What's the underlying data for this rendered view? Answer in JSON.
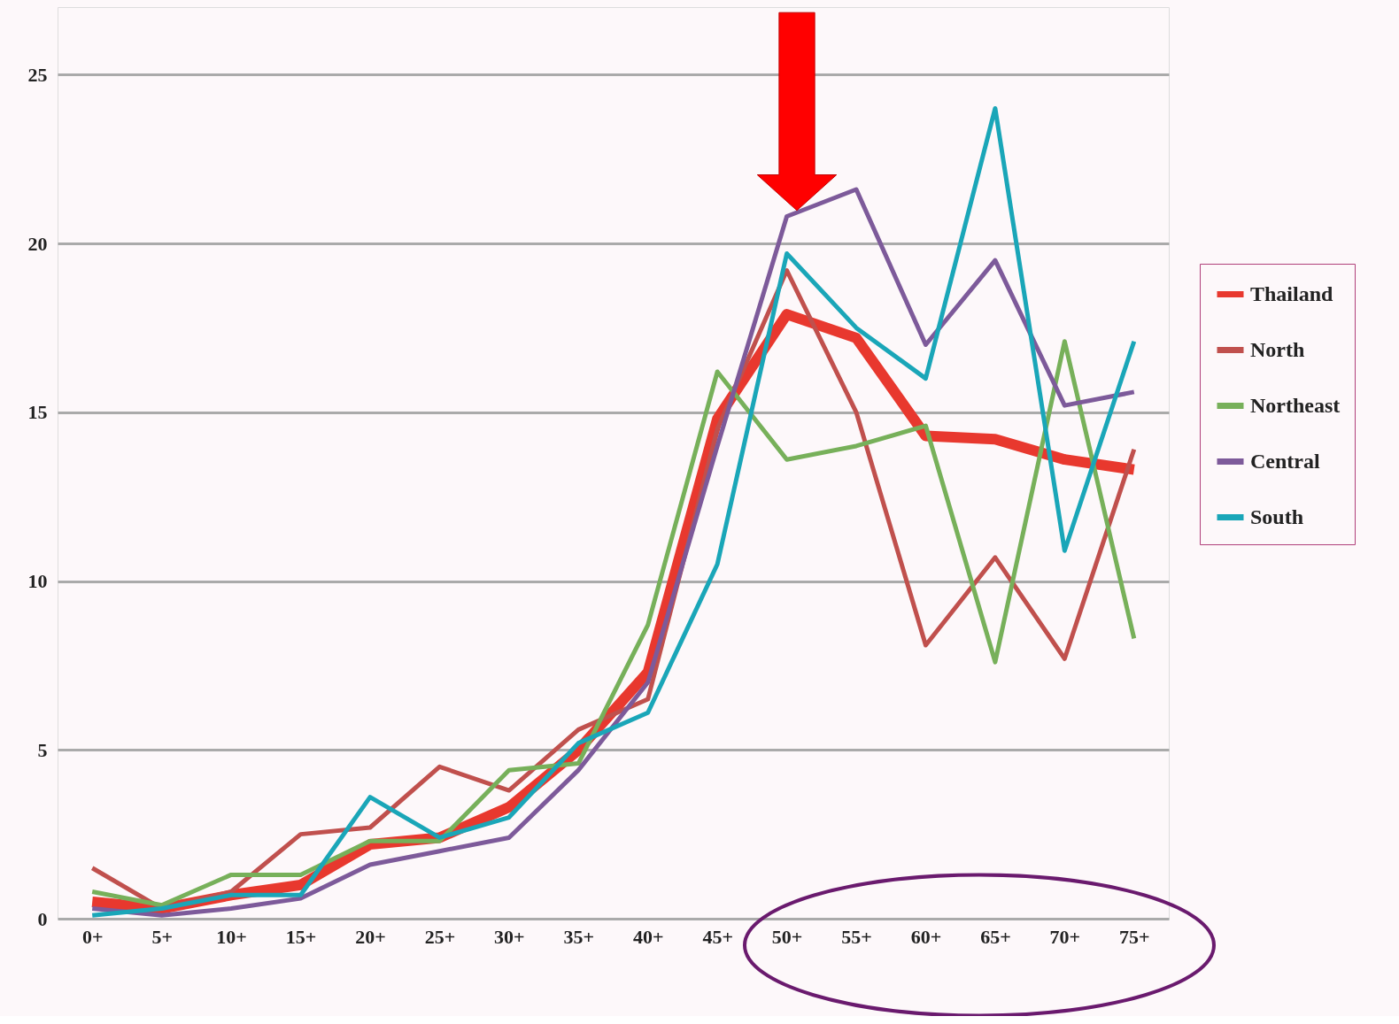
{
  "chart_data": {
    "type": "line",
    "categories": [
      "0+",
      "5+",
      "10+",
      "15+",
      "20+",
      "25+",
      "30+",
      "35+",
      "40+",
      "45+",
      "50+",
      "55+",
      "60+",
      "65+",
      "70+",
      "75+"
    ],
    "series": [
      {
        "name": "Thailand",
        "color": "#e8382e",
        "values": [
          0.5,
          0.3,
          0.7,
          1.0,
          2.2,
          2.4,
          3.3,
          5.0,
          7.3,
          14.8,
          17.9,
          17.2,
          14.3,
          14.2,
          13.6,
          13.3
        ]
      },
      {
        "name": "North",
        "color": "#c0504d",
        "values": [
          1.5,
          0.3,
          0.8,
          2.5,
          2.7,
          4.5,
          3.8,
          5.6,
          6.5,
          14.5,
          19.2,
          15.0,
          8.1,
          10.7,
          7.7,
          13.9
        ]
      },
      {
        "name": "Northeast",
        "color": "#77b05a",
        "values": [
          0.8,
          0.4,
          1.3,
          1.3,
          2.3,
          2.3,
          4.4,
          4.6,
          8.7,
          16.2,
          13.6,
          14.0,
          14.6,
          7.6,
          17.1,
          8.3
        ]
      },
      {
        "name": "Central",
        "color": "#7d5a9a",
        "values": [
          0.3,
          0.1,
          0.3,
          0.6,
          1.6,
          2.0,
          2.4,
          4.4,
          7.0,
          14.0,
          20.8,
          21.6,
          17.0,
          19.5,
          15.2,
          15.6
        ]
      },
      {
        "name": "South",
        "color": "#1aa6b8",
        "values": [
          0.1,
          0.3,
          0.7,
          0.7,
          3.6,
          2.4,
          3.0,
          5.2,
          6.1,
          10.5,
          19.7,
          17.5,
          16.0,
          24.0,
          10.9,
          17.1
        ]
      }
    ],
    "ylim": [
      0,
      27
    ],
    "yticks": [
      0,
      5,
      10,
      15,
      20,
      25
    ],
    "grid": "y",
    "legend": "right",
    "marker": "none",
    "line_style": "solid"
  }
}
